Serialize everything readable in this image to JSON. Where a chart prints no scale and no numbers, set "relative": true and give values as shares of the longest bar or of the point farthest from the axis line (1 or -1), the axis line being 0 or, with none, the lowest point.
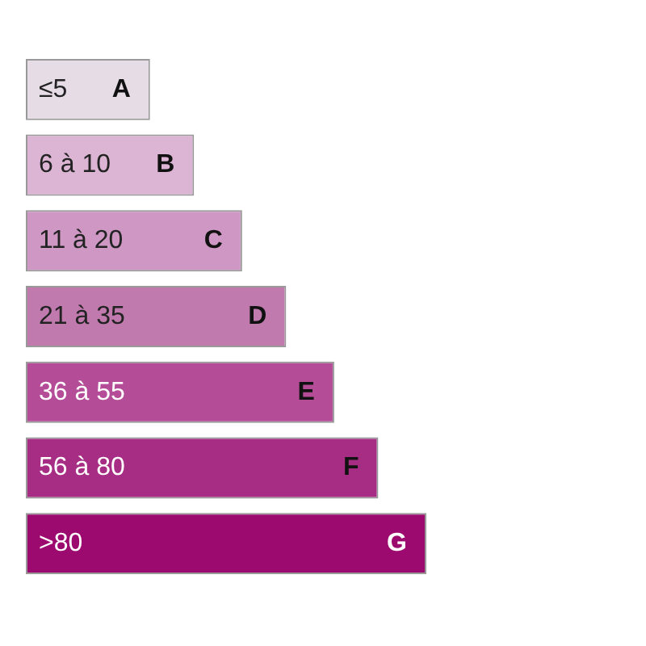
{
  "chart_data": {
    "type": "bar",
    "orientation": "horizontal",
    "relative": true,
    "categories": [
      "≤5",
      "6 à 10",
      "11 à 20",
      "21 à 35",
      "36 à 55",
      "56 à 80",
      ">80"
    ],
    "values": [
      0.31,
      0.42,
      0.54,
      0.65,
      0.77,
      0.88,
      1
    ],
    "colors": [
      "#e6dce6",
      "#dcb4d4",
      "#cf98c4",
      "#c07aae",
      "#b44c97",
      "#a72c84",
      "#9c0a70"
    ],
    "annotations": [
      {
        "text": "A",
        "y": "≤5"
      },
      {
        "text": "B",
        "y": "6 à 10"
      },
      {
        "text": "C",
        "y": "11 à 20"
      },
      {
        "text": "D",
        "y": "21 à 35"
      },
      {
        "text": "E",
        "y": "36 à 55"
      },
      {
        "text": "F",
        "y": "56 à 80"
      },
      {
        "text": "G",
        "y": ">80"
      }
    ]
  }
}
